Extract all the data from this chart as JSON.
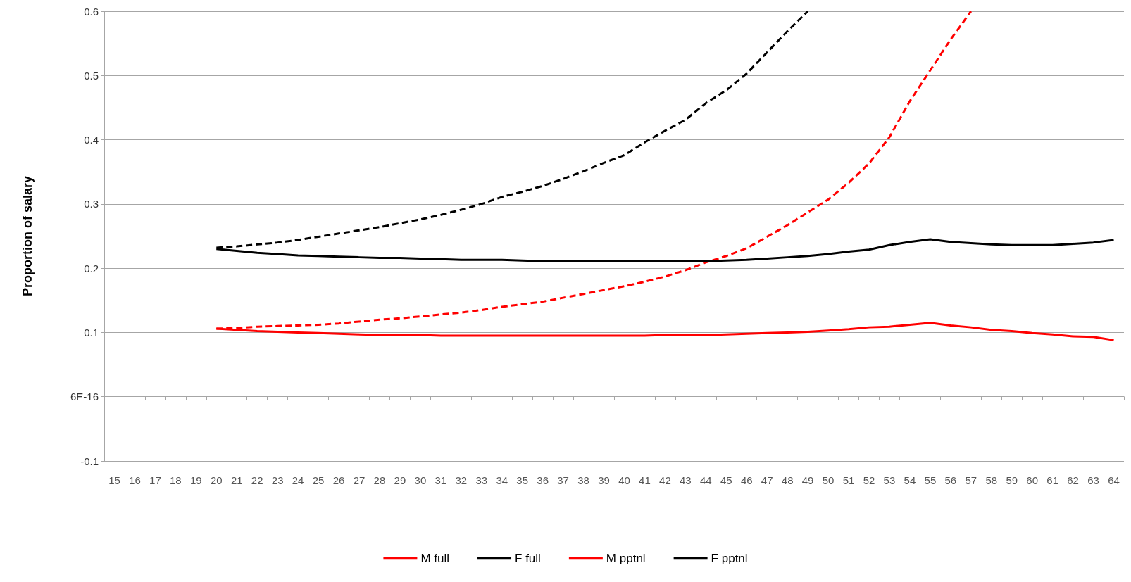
{
  "chart_data": {
    "type": "line",
    "ylabel": "Proportion of salary",
    "categories": [
      "15",
      "16",
      "17",
      "18",
      "19",
      "20",
      "21",
      "22",
      "23",
      "24",
      "25",
      "26",
      "27",
      "28",
      "29",
      "30",
      "31",
      "32",
      "33",
      "34",
      "35",
      "36",
      "37",
      "38",
      "39",
      "40",
      "41",
      "42",
      "43",
      "44",
      "45",
      "46",
      "47",
      "48",
      "49",
      "50",
      "51",
      "52",
      "53",
      "54",
      "55",
      "56",
      "57",
      "58",
      "59",
      "60",
      "61",
      "62",
      "63",
      "64"
    ],
    "ylim": [
      -0.1,
      0.6
    ],
    "yticks": [
      -0.1,
      {
        "value": 0,
        "label": "6E-16"
      },
      0.1,
      0.2,
      0.3,
      0.4,
      0.5,
      0.6
    ],
    "grid": "y",
    "legend": "bottom",
    "marker": "none",
    "series": [
      {
        "name": "M full",
        "color": "#ff0000",
        "line_style": "dashed",
        "values": [
          null,
          null,
          null,
          null,
          null,
          0.106,
          0.107,
          0.109,
          0.11,
          0.111,
          0.112,
          0.114,
          0.117,
          0.12,
          0.122,
          0.125,
          0.128,
          0.131,
          0.135,
          0.14,
          0.144,
          0.148,
          0.154,
          0.16,
          0.166,
          0.172,
          0.179,
          0.187,
          0.197,
          0.209,
          0.219,
          0.231,
          0.249,
          0.267,
          0.287,
          0.307,
          0.333,
          0.363,
          0.404,
          0.46,
          0.508,
          0.556,
          0.6,
          null,
          null,
          null,
          null,
          null,
          null,
          null
        ]
      },
      {
        "name": "F full",
        "color": "#000000",
        "line_style": "dashed",
        "values": [
          null,
          null,
          null,
          null,
          null,
          0.232,
          0.234,
          0.237,
          0.24,
          0.244,
          0.249,
          0.254,
          0.259,
          0.264,
          0.27,
          0.276,
          0.283,
          0.291,
          0.3,
          0.311,
          0.319,
          0.328,
          0.339,
          0.351,
          0.364,
          0.376,
          0.396,
          0.414,
          0.431,
          0.457,
          0.477,
          0.503,
          0.536,
          0.569,
          0.6,
          null,
          null,
          null,
          null,
          null,
          null,
          null,
          null,
          null,
          null,
          null,
          null,
          null,
          null,
          null
        ]
      },
      {
        "name": "M pptnl",
        "color": "#ff0000",
        "line_style": "solid",
        "values": [
          null,
          null,
          null,
          null,
          null,
          0.106,
          0.104,
          0.102,
          0.101,
          0.1,
          0.099,
          0.098,
          0.097,
          0.096,
          0.096,
          0.096,
          0.095,
          0.095,
          0.095,
          0.095,
          0.095,
          0.095,
          0.095,
          0.095,
          0.095,
          0.095,
          0.095,
          0.096,
          0.096,
          0.096,
          0.097,
          0.098,
          0.099,
          0.1,
          0.101,
          0.103,
          0.105,
          0.108,
          0.109,
          0.112,
          0.115,
          0.111,
          0.108,
          0.104,
          0.102,
          0.099,
          0.097,
          0.094,
          0.093,
          0.088
        ]
      },
      {
        "name": "F pptnl",
        "color": "#000000",
        "line_style": "solid",
        "values": [
          null,
          null,
          null,
          null,
          null,
          0.23,
          0.227,
          0.224,
          0.222,
          0.22,
          0.219,
          0.218,
          0.217,
          0.216,
          0.216,
          0.215,
          0.214,
          0.213,
          0.213,
          0.213,
          0.212,
          0.211,
          0.211,
          0.211,
          0.211,
          0.211,
          0.211,
          0.211,
          0.211,
          0.211,
          0.212,
          0.213,
          0.215,
          0.217,
          0.219,
          0.222,
          0.226,
          0.229,
          0.236,
          0.241,
          0.245,
          0.241,
          0.239,
          0.237,
          0.236,
          0.236,
          0.236,
          0.238,
          0.24,
          0.244
        ]
      }
    ]
  }
}
